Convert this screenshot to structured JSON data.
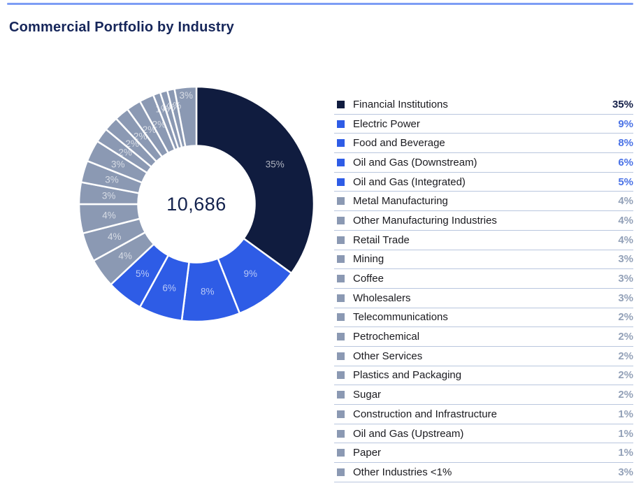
{
  "colors": {
    "navy": "#101C3F",
    "blue": "#2E5CE6",
    "gray": "#8B99B3",
    "pct_navy": "#141F48",
    "pct_blue": "#4A72E6",
    "pct_gray": "#93A1B8",
    "separator": "#B9C6DE",
    "top_rule": "#7D9DF5",
    "title_text": "#16265A",
    "label_text": "#1A1A1F",
    "center_text": "#13224D",
    "slice_label": "rgba(255,255,255,0.65)"
  },
  "chart_data": {
    "type": "pie",
    "variant": "donut",
    "title": "Commercial Portfolio by Industry",
    "center_label": "10,686",
    "start_angle_deg": 0,
    "direction": "clockwise",
    "legend_position": "right",
    "categories": [
      "Financial Institutions",
      "Electric Power",
      "Food and Beverage",
      "Oil and Gas (Downstream)",
      "Oil and Gas (Integrated)",
      "Metal Manufacturing",
      "Other Manufacturing Industries",
      "Retail Trade",
      "Mining",
      "Coffee",
      "Wholesalers",
      "Telecommunications",
      "Petrochemical",
      "Other Services",
      "Plastics and Packaging",
      "Sugar",
      "Construction and Infrastructure",
      "Oil and Gas (Upstream)",
      "Paper",
      "Other Industries <1%"
    ],
    "values": [
      35,
      9,
      8,
      6,
      5,
      4,
      4,
      4,
      3,
      3,
      3,
      2,
      2,
      2,
      2,
      2,
      1,
      1,
      1,
      3
    ],
    "value_labels": [
      "35%",
      "9%",
      "8%",
      "6%",
      "5%",
      "4%",
      "4%",
      "4%",
      "3%",
      "3%",
      "3%",
      "2%",
      "2%",
      "2%",
      "2%",
      "2%",
      "1%",
      "1%",
      "1%",
      "3%"
    ],
    "color_groups": [
      "navy",
      "blue",
      "blue",
      "blue",
      "blue",
      "gray",
      "gray",
      "gray",
      "gray",
      "gray",
      "gray",
      "gray",
      "gray",
      "gray",
      "gray",
      "gray",
      "gray",
      "gray",
      "gray",
      "gray"
    ]
  }
}
